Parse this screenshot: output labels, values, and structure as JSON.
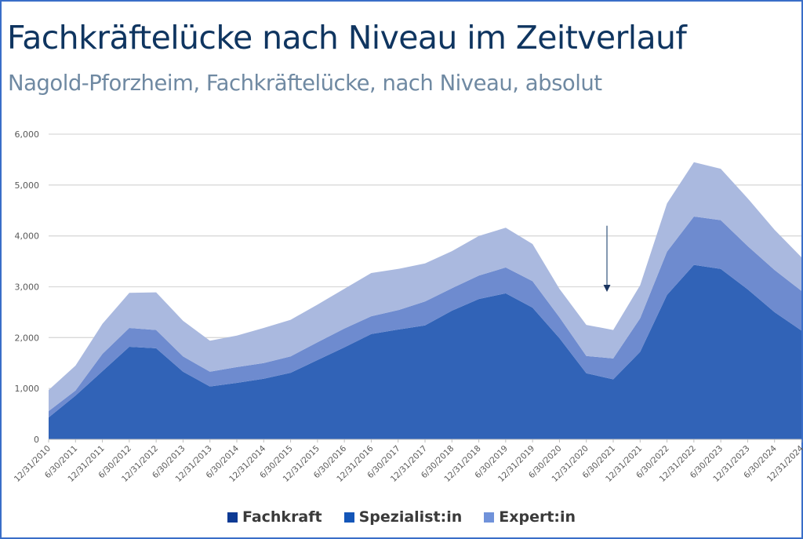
{
  "title": "Fachkräftelücke nach Niveau im Zeitverlauf",
  "subtitle": "Nagold-Pforzheim, Fachkräftelücke, nach Niveau, absolut",
  "chart_data": {
    "type": "area",
    "stacked": true,
    "title": "Fachkräftelücke nach Niveau im Zeitverlauf",
    "subtitle": "Nagold-Pforzheim, Fachkräftelücke, nach Niveau, absolut",
    "xlabel": "",
    "ylabel": "",
    "ylim": [
      0,
      6000
    ],
    "yticks": [
      0,
      1000,
      2000,
      3000,
      4000,
      5000,
      6000
    ],
    "ytick_labels": [
      "0",
      "1,000",
      "2,000",
      "3,000",
      "4,000",
      "5,000",
      "6,000"
    ],
    "grid": true,
    "legend_position": "bottom",
    "categories": [
      "12/31/2010",
      "6/30/2011",
      "12/31/2011",
      "6/30/2012",
      "12/31/2012",
      "6/30/2013",
      "12/31/2013",
      "6/30/2014",
      "12/31/2014",
      "6/30/2015",
      "12/31/2015",
      "6/30/2016",
      "12/31/2016",
      "6/30/2017",
      "12/31/2017",
      "6/30/2018",
      "12/31/2018",
      "6/30/2019",
      "12/31/2019",
      "6/30/2020",
      "12/31/2020",
      "6/30/2021",
      "12/31/2021",
      "6/30/2022",
      "12/31/2022",
      "6/30/2023",
      "12/31/2023",
      "6/30/2024",
      "12/31/2024"
    ],
    "series": [
      {
        "name": "Fachkraft",
        "area_color": "#3163b7",
        "legend_color": "#0d3a94",
        "values": [
          430,
          860,
          1340,
          1820,
          1790,
          1330,
          1040,
          1110,
          1190,
          1310,
          1560,
          1810,
          2070,
          2160,
          2240,
          2530,
          2760,
          2870,
          2590,
          1990,
          1300,
          1180,
          1720,
          2840,
          3430,
          3350,
          2950,
          2500,
          2140
        ]
      },
      {
        "name": "Spezialist:in",
        "area_color": "#6e8bcf",
        "legend_color": "#1456b8",
        "values": [
          125,
          100,
          340,
          370,
          360,
          300,
          290,
          310,
          310,
          320,
          350,
          370,
          350,
          380,
          470,
          440,
          460,
          510,
          520,
          410,
          340,
          410,
          660,
          850,
          950,
          960,
          850,
          830,
          780
        ]
      },
      {
        "name": "Expert:in",
        "area_color": "#aab9df",
        "legend_color": "#7092da",
        "values": [
          415,
          490,
          590,
          690,
          740,
          700,
          610,
          620,
          690,
          720,
          740,
          780,
          850,
          810,
          750,
          730,
          780,
          780,
          730,
          560,
          610,
          560,
          650,
          950,
          1070,
          1010,
          940,
          790,
          660
        ]
      }
    ],
    "annotations": [
      {
        "type": "arrow",
        "direction": "down",
        "x_category": "6/30/2021",
        "from_value": 4200,
        "to_value": 2900,
        "color": "#1a3560"
      }
    ]
  }
}
